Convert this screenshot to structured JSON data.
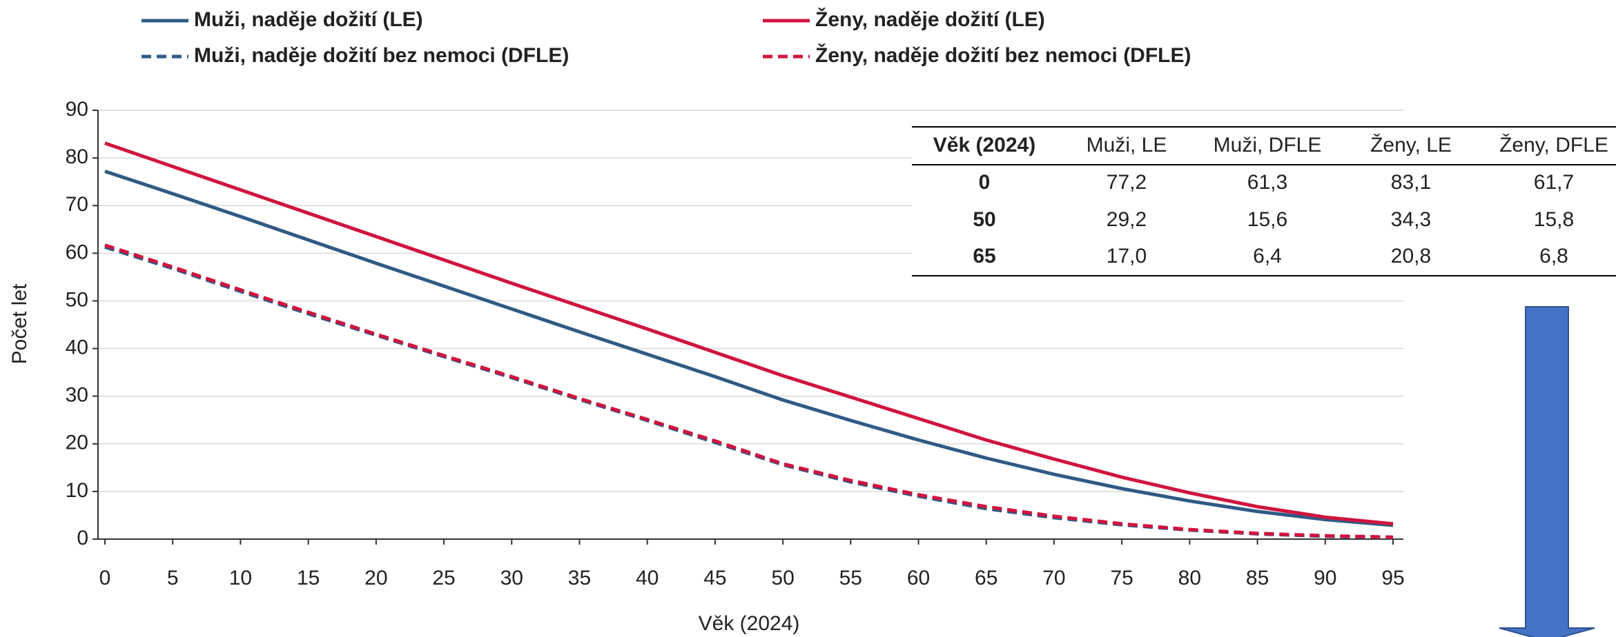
{
  "chart_data": {
    "type": "line",
    "x_label": "Věk (2024)",
    "y_label": "Počet let",
    "x": [
      0,
      5,
      10,
      15,
      20,
      25,
      30,
      35,
      40,
      45,
      50,
      55,
      60,
      65,
      70,
      75,
      80,
      85,
      90,
      95
    ],
    "xlim": [
      0,
      95
    ],
    "xticks": [
      0,
      5,
      10,
      15,
      20,
      25,
      30,
      35,
      40,
      45,
      50,
      55,
      60,
      65,
      70,
      75,
      80,
      85,
      90,
      95
    ],
    "ylim": [
      0,
      90
    ],
    "yticks": [
      0,
      10,
      20,
      30,
      40,
      50,
      60,
      70,
      80,
      90
    ],
    "grid": true,
    "series": [
      {
        "name": "Muži, naděje dožití (LE)",
        "color": "#2f5a85",
        "dash": false,
        "values": [
          77.2,
          72.5,
          67.7,
          62.8,
          57.9,
          53.1,
          48.3,
          43.5,
          38.8,
          34.1,
          29.2,
          24.9,
          20.8,
          17.0,
          13.6,
          10.6,
          8.0,
          5.8,
          4.1,
          2.9
        ]
      },
      {
        "name": "Ženy, naděje dožití (LE)",
        "color": "#d0143e",
        "dash": false,
        "values": [
          83.1,
          78.2,
          73.3,
          68.4,
          63.5,
          58.6,
          53.7,
          48.9,
          44.1,
          39.2,
          34.3,
          29.8,
          25.3,
          20.8,
          16.8,
          13.0,
          9.7,
          6.8,
          4.6,
          3.2
        ]
      },
      {
        "name": "Muži, naděje dožití bez nemoci (DFLE)",
        "color": "#2f5a85",
        "dash": true,
        "values": [
          61.3,
          56.8,
          52.0,
          47.3,
          42.8,
          38.3,
          33.9,
          29.3,
          24.9,
          20.3,
          15.6,
          12.0,
          9.0,
          6.4,
          4.5,
          3.0,
          1.9,
          1.1,
          0.6,
          0.3
        ]
      },
      {
        "name": "Ženy, naděje dožití bez nemoci (DFLE)",
        "color": "#d0143e",
        "dash": true,
        "values": [
          61.7,
          57.1,
          52.3,
          47.6,
          43.0,
          38.5,
          34.1,
          29.5,
          25.1,
          20.6,
          15.8,
          12.3,
          9.3,
          6.8,
          4.8,
          3.2,
          2.0,
          1.2,
          0.7,
          0.4
        ]
      }
    ]
  },
  "table": {
    "header": [
      "Věk (2024)",
      "Muži, LE",
      "Muži, DFLE",
      "Ženy, LE",
      "Ženy, DFLE"
    ],
    "rows": [
      [
        "0",
        "77,2",
        "61,3",
        "83,1",
        "61,7"
      ],
      [
        "50",
        "29,2",
        "15,6",
        "34,3",
        "15,8"
      ],
      [
        "65",
        "17,0",
        "6,4",
        "20,8",
        "6,8"
      ]
    ]
  }
}
